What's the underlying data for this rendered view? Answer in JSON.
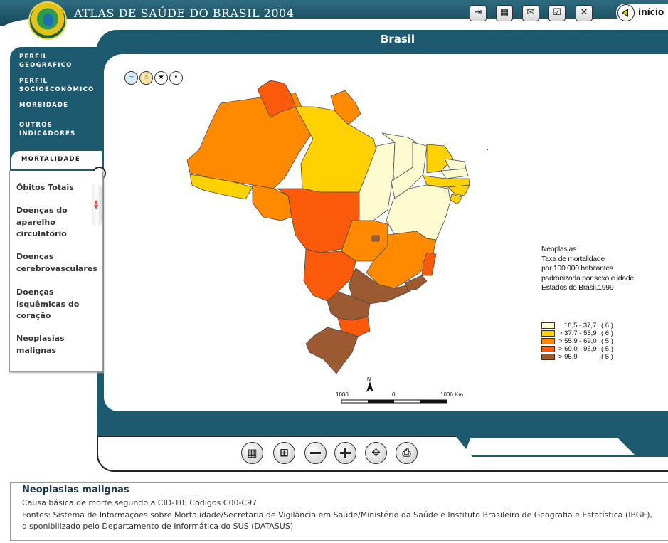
{
  "header": {
    "title": "ATLAS DE SAÚDE DO BRASIL 2004",
    "toolbar": [
      {
        "name": "exit-icon",
        "glyph": "⇥"
      },
      {
        "name": "calculator-icon",
        "glyph": "▦"
      },
      {
        "name": "mail-icon",
        "glyph": "✉"
      },
      {
        "name": "checklist-icon",
        "glyph": "☑"
      },
      {
        "name": "close-icon",
        "glyph": "✕"
      }
    ],
    "inicio_label": "início"
  },
  "frame": {
    "title": "Brasil"
  },
  "nav": {
    "items": [
      {
        "line1": "PERFIL",
        "line2": "GEOGRAFICO"
      },
      {
        "line1": "PERFIL",
        "line2": "SOCIOECONÔMICO"
      },
      {
        "line1": "MORBIDADE",
        "line2": ""
      },
      {
        "line1": "OUTROS",
        "line2": "INDICADORES"
      }
    ],
    "active": "MORTALIDADE"
  },
  "submenu": {
    "items": [
      "Óbitos Totais",
      "Doenças do aparelho circulatório",
      "Doenças cerebrovasculares",
      "Doenças isquêmicas do coração",
      "Neoplasias malignas"
    ]
  },
  "map": {
    "tools": [
      "globe-icon",
      "hand-icon",
      "star-icon",
      "point-icon"
    ],
    "legend_title_lines": [
      "Neoplasias",
      "Taxa de mortalidade",
      "por 100.000 habitantes",
      "padronizada por sexo e idade",
      "Estados do Brasil,1999"
    ],
    "legend": [
      {
        "range": "   18,5 - 37,7",
        "count": "( 6 )",
        "color": "#fffbd1"
      },
      {
        "range": "> 37,7 - 55,9",
        "count": "( 6 )",
        "color": "#ffd100"
      },
      {
        "range": "> 55,9 - 69,0",
        "count": "( 5 )",
        "color": "#ff8a00"
      },
      {
        "range": "> 69,0 - 95,9",
        "count": "( 5 )",
        "color": "#fa5a0a"
      },
      {
        "range": "> 95,9",
        "count": "( 5 )",
        "color": "#9c5a32"
      }
    ],
    "scale": {
      "north": "N",
      "left": "1000",
      "mid": "0",
      "right": "1000 Km"
    }
  },
  "bottom_toolbar": [
    "table-icon",
    "chart-icon",
    "zoom-out-icon",
    "zoom-in-icon",
    "pan-icon",
    "print-icon"
  ],
  "info": {
    "title": "Neoplasias malignas",
    "line1": "Causa básica de morte segundo a CID-10: Códigos C00-C97",
    "line2": "Fontes: Sistema de Informações sobre Mortalidade/Secretaria de Vigilância em Saúde/Ministério da Saúde e Instituto Brasileiro de Geografia e Estatística (IBGE),",
    "line3": "disponibilizado pelo Departamento de Informática do SUS (DATASUS)"
  }
}
